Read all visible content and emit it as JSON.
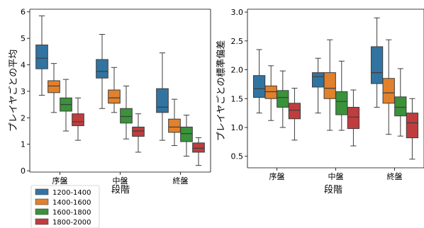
{
  "colors": {
    "1200-1400": "#3274a1",
    "1400-1600": "#e1812c",
    "1600-1800": "#3a923a",
    "1800-2000": "#c03d3e"
  },
  "legend": {
    "location": "lower-left, outside plot",
    "entries": [
      "1200-1400",
      "1400-1600",
      "1600-1800",
      "1800-2000"
    ]
  },
  "chart_data": [
    {
      "type": "box",
      "xlabel": "段階",
      "ylabel": "プレイヤごとの平均",
      "categories": [
        "序盤",
        "中盤",
        "終盤"
      ],
      "ylim": [
        -0.05,
        6.1
      ],
      "yticks": [
        0,
        1,
        2,
        3,
        4,
        5,
        6
      ],
      "yticklabels": [
        "0",
        "1",
        "2",
        "3",
        "4",
        "5",
        "6"
      ],
      "series": [
        {
          "name": "1200-1400",
          "boxes": [
            {
              "whislo": 2.85,
              "q1": 3.85,
              "med": 4.25,
              "q3": 4.75,
              "whishi": 5.85
            },
            {
              "whislo": 2.35,
              "q1": 3.5,
              "med": 3.75,
              "q3": 4.2,
              "whishi": 5.15
            },
            {
              "whislo": 1.15,
              "q1": 2.2,
              "med": 2.4,
              "q3": 3.1,
              "whishi": 4.45
            }
          ]
        },
        {
          "name": "1400-1600",
          "boxes": [
            {
              "whislo": 2.2,
              "q1": 2.95,
              "med": 3.2,
              "q3": 3.4,
              "whishi": 4.05
            },
            {
              "whislo": 2.2,
              "q1": 2.55,
              "med": 2.75,
              "q3": 3.05,
              "whishi": 3.9
            },
            {
              "whislo": 0.95,
              "q1": 1.45,
              "med": 1.65,
              "q3": 1.95,
              "whishi": 2.7
            }
          ]
        },
        {
          "name": "1600-1800",
          "boxes": [
            {
              "whislo": 1.5,
              "q1": 2.25,
              "med": 2.5,
              "q3": 2.75,
              "whishi": 3.45
            },
            {
              "whislo": 1.2,
              "q1": 1.8,
              "med": 2.05,
              "q3": 2.35,
              "whishi": 3.2
            },
            {
              "whislo": 0.55,
              "q1": 1.1,
              "med": 1.4,
              "q3": 1.65,
              "whishi": 2.1
            }
          ]
        },
        {
          "name": "1800-2000",
          "boxes": [
            {
              "whislo": 1.15,
              "q1": 1.7,
              "med": 1.85,
              "q3": 2.15,
              "whishi": 2.75
            },
            {
              "whislo": 0.7,
              "q1": 1.3,
              "med": 1.5,
              "q3": 1.65,
              "whishi": 2.15
            },
            {
              "whislo": 0.2,
              "q1": 0.7,
              "med": 0.85,
              "q3": 1.05,
              "whishi": 1.25
            }
          ]
        }
      ]
    },
    {
      "type": "box",
      "xlabel": "段階",
      "ylabel": "プレイヤごとの標準偏差",
      "categories": [
        "序盤",
        "中盤",
        "終盤"
      ],
      "ylim": [
        0.3,
        3.05
      ],
      "yticks": [
        0.5,
        1.0,
        1.5,
        2.0,
        2.5,
        3.0
      ],
      "yticklabels": [
        "0.5",
        "1.0",
        "1.5",
        "2.0",
        "2.5",
        "3.0"
      ],
      "series": [
        {
          "name": "1200-1400",
          "boxes": [
            {
              "whislo": 1.25,
              "q1": 1.52,
              "med": 1.67,
              "q3": 1.9,
              "whishi": 2.35
            },
            {
              "whislo": 1.25,
              "q1": 1.7,
              "med": 1.88,
              "q3": 1.95,
              "whishi": 2.2
            },
            {
              "whislo": 1.35,
              "q1": 1.76,
              "med": 1.95,
              "q3": 2.4,
              "whishi": 2.9
            }
          ]
        },
        {
          "name": "1400-1600",
          "boxes": [
            {
              "whislo": 1.12,
              "q1": 1.5,
              "med": 1.62,
              "q3": 1.72,
              "whishi": 2.07
            },
            {
              "whislo": 0.95,
              "q1": 1.5,
              "med": 1.68,
              "q3": 1.95,
              "whishi": 2.52
            },
            {
              "whislo": 0.88,
              "q1": 1.42,
              "med": 1.6,
              "q3": 1.85,
              "whishi": 2.52
            }
          ]
        },
        {
          "name": "1600-1800",
          "boxes": [
            {
              "whislo": 1.0,
              "q1": 1.35,
              "med": 1.52,
              "q3": 1.64,
              "whishi": 1.98
            },
            {
              "whislo": 0.95,
              "q1": 1.22,
              "med": 1.45,
              "q3": 1.62,
              "whishi": 2.15
            },
            {
              "whislo": 0.85,
              "q1": 1.2,
              "med": 1.35,
              "q3": 1.53,
              "whishi": 2.02
            }
          ]
        },
        {
          "name": "1800-2000",
          "boxes": [
            {
              "whislo": 0.78,
              "q1": 1.15,
              "med": 1.3,
              "q3": 1.42,
              "whishi": 1.68
            },
            {
              "whislo": 0.68,
              "q1": 0.98,
              "med": 1.18,
              "q3": 1.35,
              "whishi": 1.65
            },
            {
              "whislo": 0.45,
              "q1": 0.82,
              "med": 1.08,
              "q3": 1.25,
              "whishi": 1.5
            }
          ]
        }
      ]
    }
  ]
}
